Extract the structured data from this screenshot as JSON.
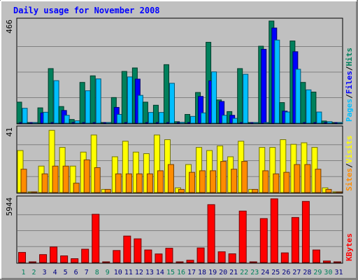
{
  "chart_data": {
    "type": "bar",
    "title": "Daily usage for November 2008",
    "categories": [
      "1",
      "2",
      "3",
      "4",
      "5",
      "6",
      "7",
      "8",
      "9",
      "10",
      "11",
      "12",
      "13",
      "14",
      "15",
      "16",
      "17",
      "18",
      "19",
      "20",
      "21",
      "22",
      "23",
      "24",
      "25",
      "26",
      "27",
      "28",
      "29",
      "30",
      "31"
    ],
    "weekend_days": [
      "1",
      "2",
      "8",
      "9",
      "15",
      "16",
      "22",
      "23",
      "29",
      "30"
    ],
    "panels": [
      {
        "name": "hits-files-pages",
        "ymax_label": "466",
        "ymax": 466,
        "series": [
          {
            "name": "Hits",
            "color": "#00805c",
            "values": [
              96,
              0,
              70,
              249,
              76,
              17,
              186,
              216,
              0,
              117,
              236,
              252,
              96,
              82,
              267,
              7,
              40,
              140,
              369,
              106,
              53,
              249,
              0,
              351,
              466,
              94,
              375,
              186,
              142,
              10,
              0
            ]
          },
          {
            "name": "Files",
            "color": "#0000ff",
            "values": [
              0,
              0,
              47,
              0,
              58,
              0,
              0,
              0,
              0,
              72,
              0,
              201,
              0,
              0,
              0,
              0,
              0,
              122,
              193,
              99,
              36,
              0,
              0,
              337,
              434,
              55,
              326,
              0,
              0,
              0,
              0
            ]
          },
          {
            "name": "Pages",
            "color": "#00bfff",
            "values": [
              68,
              0,
              50,
              194,
              36,
              11,
              148,
              202,
              0,
              40,
              211,
              127,
              49,
              49,
              182,
              4,
              31,
              47,
              234,
              36,
              22,
              223,
              0,
              0,
              379,
              51,
              246,
              152,
              51,
              7,
              0
            ]
          }
        ],
        "legend": [
          {
            "text": "Pages",
            "color": "#00bfff"
          },
          {
            "text": "/",
            "color": "#000000"
          },
          {
            "text": "Files",
            "color": "#0000ff"
          },
          {
            "text": "/",
            "color": "#000000"
          },
          {
            "text": "Hits",
            "color": "#00805c"
          }
        ]
      },
      {
        "name": "visits-sites",
        "ymax_label": "41",
        "ymax": 41,
        "series": [
          {
            "name": "Visits",
            "color": "#ffff00",
            "values": [
              27,
              0,
              17,
              40,
              29,
              17,
              26,
              37,
              2,
              23,
              33,
              26,
              25,
              37,
              34,
              3,
              18,
              29,
              27,
              30,
              23,
              33,
              2,
              29,
              29,
              34,
              31,
              32,
              29,
              3,
              0
            ]
          },
          {
            "name": "Sites",
            "color": "#ff8c00",
            "values": [
              15,
              0,
              12,
              17,
              17,
              6,
              21,
              16,
              2,
              12,
              12,
              12,
              12,
              14,
              18,
              2,
              13,
              14,
              14,
              20,
              15,
              20,
              2,
              14,
              12,
              13,
              18,
              18,
              15,
              2,
              0
            ]
          }
        ],
        "legend": [
          {
            "text": "Sites",
            "color": "#ff8c00"
          },
          {
            "text": "/",
            "color": "#000000"
          },
          {
            "text": "Visits",
            "color": "#ffff00"
          }
        ]
      },
      {
        "name": "kbytes",
        "ymax_label": "5944",
        "ymax": 5944,
        "series": [
          {
            "name": "KBytes",
            "color": "#ff0000",
            "values": [
              940,
              0,
              738,
              1450,
              620,
              356,
              1240,
              4500,
              0,
              1120,
              2470,
              2210,
              1170,
              800,
              1330,
              0,
              210,
              1360,
              5400,
              1000,
              810,
              4800,
              0,
              4100,
              5944,
              900,
              4200,
              5700,
              1170,
              140,
              0
            ]
          }
        ],
        "legend": [
          {
            "text": "KBytes",
            "color": "#ff0000"
          }
        ]
      }
    ],
    "grid": true
  },
  "colors": {
    "background": "#c0c0c0",
    "plot": "#c0c0c0",
    "title": "#0000ff",
    "weekday_label": "#000080",
    "weekend_label": "#00805c"
  }
}
